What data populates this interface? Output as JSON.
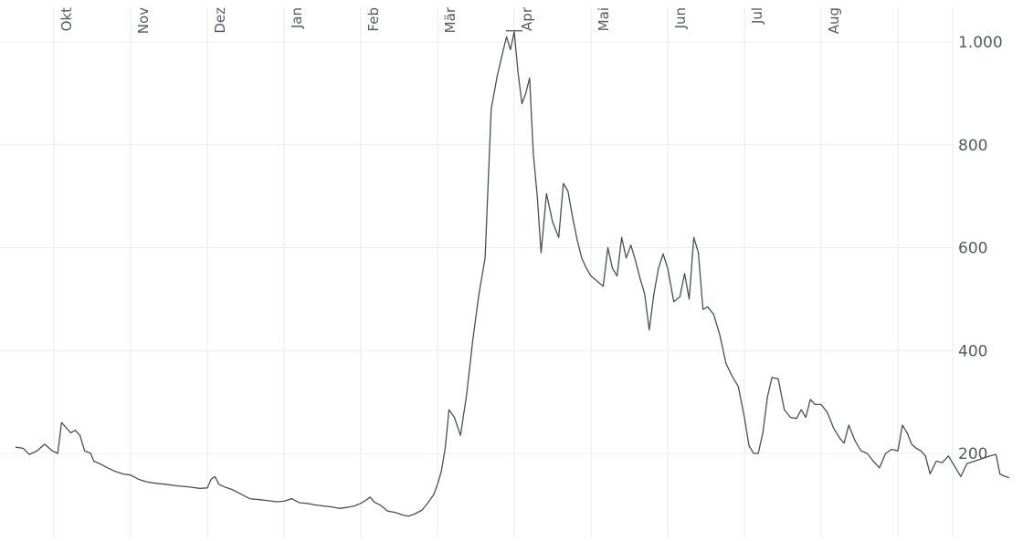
{
  "chart_data": {
    "type": "line",
    "title": "",
    "xlabel": "",
    "ylabel": "",
    "x_ticks": [
      "Okt",
      "Nov",
      "Dez",
      "Jan",
      "Feb",
      "Mär",
      "Apr",
      "Mai",
      "Jun",
      "Jul",
      "Aug"
    ],
    "y_ticks": [
      {
        "value": 200,
        "label": "200"
      },
      {
        "value": 400,
        "label": "400"
      },
      {
        "value": 600,
        "label": "600"
      },
      {
        "value": 800,
        "label": "800"
      },
      {
        "value": 1000,
        "label": "1.000"
      }
    ],
    "ylim": [
      50,
      1050
    ],
    "xlim_months": [
      -0.6,
      11.5
    ],
    "y_axis_position": "right",
    "grid": true,
    "series": [
      {
        "color": "#4a4f57",
        "points": [
          [
            -0.5,
            212
          ],
          [
            -0.4,
            210
          ],
          [
            -0.32,
            198
          ],
          [
            -0.22,
            205
          ],
          [
            -0.12,
            218
          ],
          [
            -0.02,
            205
          ],
          [
            0.05,
            200
          ],
          [
            0.1,
            260
          ],
          [
            0.16,
            250
          ],
          [
            0.22,
            240
          ],
          [
            0.28,
            245
          ],
          [
            0.34,
            235
          ],
          [
            0.4,
            205
          ],
          [
            0.48,
            200
          ],
          [
            0.52,
            185
          ],
          [
            0.6,
            180
          ],
          [
            0.7,
            172
          ],
          [
            0.8,
            165
          ],
          [
            0.9,
            160
          ],
          [
            1.0,
            158
          ],
          [
            1.1,
            150
          ],
          [
            1.2,
            145
          ],
          [
            1.32,
            142
          ],
          [
            1.45,
            140
          ],
          [
            1.6,
            137
          ],
          [
            1.75,
            135
          ],
          [
            1.9,
            132
          ],
          [
            2.0,
            133
          ],
          [
            2.05,
            150
          ],
          [
            2.1,
            155
          ],
          [
            2.15,
            140
          ],
          [
            2.22,
            135
          ],
          [
            2.32,
            130
          ],
          [
            2.45,
            120
          ],
          [
            2.55,
            112
          ],
          [
            2.68,
            110
          ],
          [
            2.8,
            108
          ],
          [
            2.9,
            106
          ],
          [
            3.0,
            107
          ],
          [
            3.1,
            112
          ],
          [
            3.2,
            104
          ],
          [
            3.3,
            103
          ],
          [
            3.4,
            100
          ],
          [
            3.5,
            98
          ],
          [
            3.62,
            96
          ],
          [
            3.72,
            93
          ],
          [
            3.82,
            95
          ],
          [
            3.92,
            98
          ],
          [
            4.0,
            103
          ],
          [
            4.08,
            110
          ],
          [
            4.12,
            115
          ],
          [
            4.18,
            105
          ],
          [
            4.25,
            100
          ],
          [
            4.35,
            88
          ],
          [
            4.45,
            85
          ],
          [
            4.55,
            80
          ],
          [
            4.62,
            78
          ],
          [
            4.7,
            82
          ],
          [
            4.8,
            90
          ],
          [
            4.88,
            105
          ],
          [
            4.95,
            120
          ],
          [
            5.0,
            140
          ],
          [
            5.05,
            165
          ],
          [
            5.1,
            210
          ],
          [
            5.15,
            285
          ],
          [
            5.22,
            270
          ],
          [
            5.3,
            235
          ],
          [
            5.38,
            315
          ],
          [
            5.46,
            420
          ],
          [
            5.54,
            510
          ],
          [
            5.62,
            580
          ],
          [
            5.7,
            870
          ],
          [
            5.78,
            935
          ],
          [
            5.85,
            980
          ],
          [
            5.9,
            1010
          ],
          [
            5.95,
            985
          ],
          [
            6.0,
            1020
          ],
          [
            6.05,
            940
          ],
          [
            6.1,
            880
          ],
          [
            6.15,
            900
          ],
          [
            6.2,
            930
          ],
          [
            6.25,
            780
          ],
          [
            6.3,
            700
          ],
          [
            6.35,
            590
          ],
          [
            6.42,
            705
          ],
          [
            6.5,
            650
          ],
          [
            6.58,
            620
          ],
          [
            6.64,
            725
          ],
          [
            6.7,
            710
          ],
          [
            6.76,
            660
          ],
          [
            6.82,
            615
          ],
          [
            6.88,
            580
          ],
          [
            6.94,
            560
          ],
          [
            7.0,
            545
          ],
          [
            7.08,
            535
          ],
          [
            7.16,
            525
          ],
          [
            7.22,
            600
          ],
          [
            7.28,
            560
          ],
          [
            7.34,
            545
          ],
          [
            7.4,
            620
          ],
          [
            7.46,
            580
          ],
          [
            7.52,
            605
          ],
          [
            7.58,
            575
          ],
          [
            7.64,
            540
          ],
          [
            7.7,
            510
          ],
          [
            7.76,
            440
          ],
          [
            7.82,
            510
          ],
          [
            7.88,
            560
          ],
          [
            7.94,
            588
          ],
          [
            8.0,
            560
          ],
          [
            8.08,
            495
          ],
          [
            8.16,
            505
          ],
          [
            8.22,
            550
          ],
          [
            8.28,
            500
          ],
          [
            8.34,
            620
          ],
          [
            8.4,
            590
          ],
          [
            8.46,
            480
          ],
          [
            8.52,
            485
          ],
          [
            8.6,
            470
          ],
          [
            8.68,
            430
          ],
          [
            8.76,
            375
          ],
          [
            8.84,
            350
          ],
          [
            8.92,
            330
          ],
          [
            9.0,
            270
          ],
          [
            9.06,
            215
          ],
          [
            9.12,
            200
          ],
          [
            9.18,
            200
          ],
          [
            9.24,
            240
          ],
          [
            9.3,
            310
          ],
          [
            9.36,
            348
          ],
          [
            9.44,
            345
          ],
          [
            9.52,
            285
          ],
          [
            9.6,
            270
          ],
          [
            9.68,
            268
          ],
          [
            9.74,
            285
          ],
          [
            9.8,
            270
          ],
          [
            9.86,
            305
          ],
          [
            9.92,
            295
          ],
          [
            10.0,
            295
          ],
          [
            10.08,
            280
          ],
          [
            10.16,
            250
          ],
          [
            10.24,
            230
          ],
          [
            10.3,
            220
          ],
          [
            10.36,
            255
          ],
          [
            10.44,
            225
          ],
          [
            10.52,
            205
          ],
          [
            10.6,
            200
          ],
          [
            10.68,
            185
          ],
          [
            10.76,
            172
          ],
          [
            10.84,
            200
          ],
          [
            10.92,
            208
          ],
          [
            11.0,
            205
          ],
          [
            11.06,
            255
          ],
          [
            11.12,
            240
          ],
          [
            11.18,
            218
          ],
          [
            11.24,
            210
          ],
          [
            11.3,
            205
          ],
          [
            11.36,
            195
          ],
          [
            11.42,
            160
          ],
          [
            11.5,
            185
          ],
          [
            11.58,
            182
          ],
          [
            11.66,
            195
          ],
          [
            11.74,
            175
          ],
          [
            11.82,
            155
          ],
          [
            11.9,
            180
          ],
          [
            12.0,
            185
          ],
          [
            12.1,
            190
          ],
          [
            12.2,
            195
          ],
          [
            12.28,
            198
          ],
          [
            12.33,
            160
          ],
          [
            12.4,
            155
          ],
          [
            12.45,
            153
          ]
        ]
      }
    ]
  }
}
